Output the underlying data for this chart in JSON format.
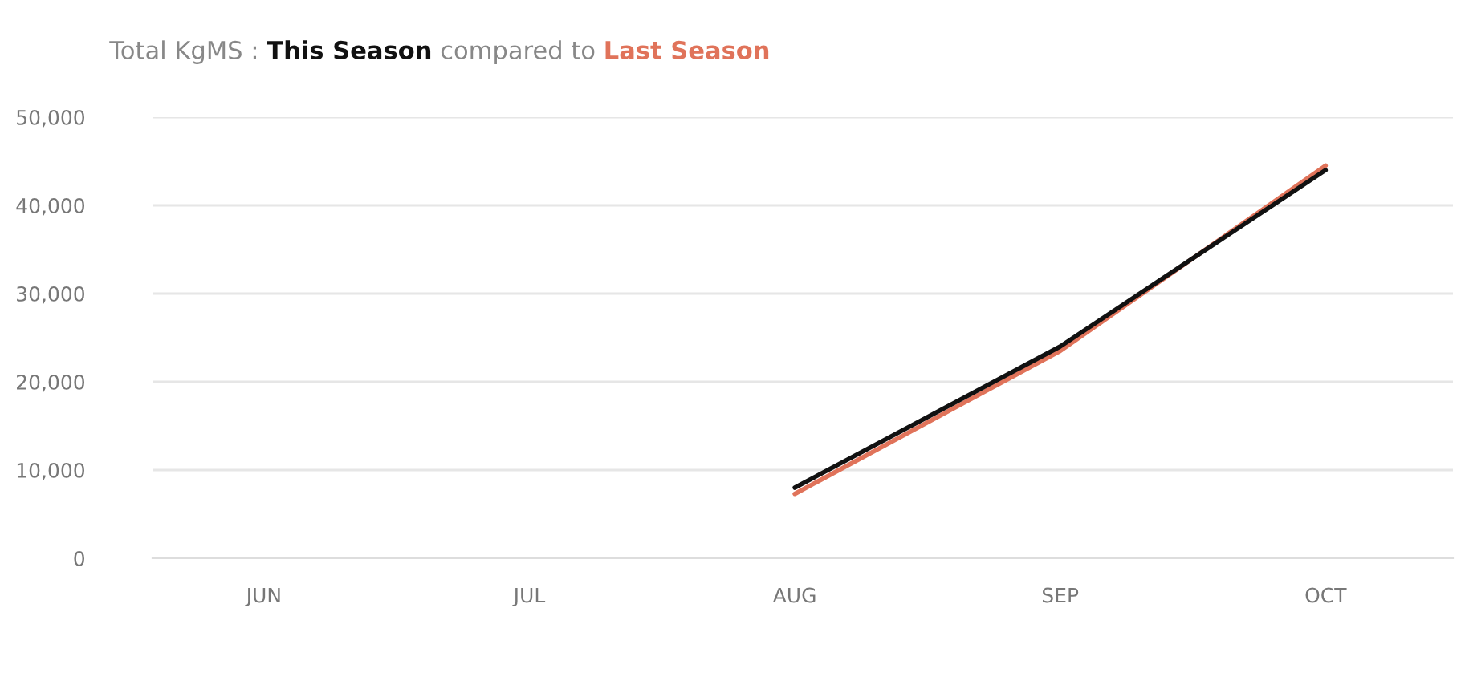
{
  "chart_data": {
    "type": "line",
    "title": "Total KgMS :",
    "annotations": [
      "compared to"
    ],
    "categories": [
      "JUN",
      "JUL",
      "AUG",
      "SEP",
      "OCT"
    ],
    "series": [
      {
        "name": "Last Season",
        "color": "#e0735a",
        "values": [
          null,
          null,
          7300,
          23500,
          44500
        ]
      },
      {
        "name": "This Season",
        "color": "#111111",
        "values": [
          null,
          null,
          8000,
          24000,
          44000
        ]
      }
    ],
    "ylim": [
      0,
      50000
    ],
    "yticks": [
      {
        "value": 0,
        "label": "0"
      },
      {
        "value": 10000,
        "label": "10,000"
      },
      {
        "value": 20000,
        "label": "20,000"
      },
      {
        "value": 30000,
        "label": "30,000"
      },
      {
        "value": 40000,
        "label": "40,000"
      },
      {
        "value": 50000,
        "label": "50,000"
      }
    ],
    "grid": "y",
    "legend": "top left",
    "marker": "none",
    "line_style": "solid"
  }
}
